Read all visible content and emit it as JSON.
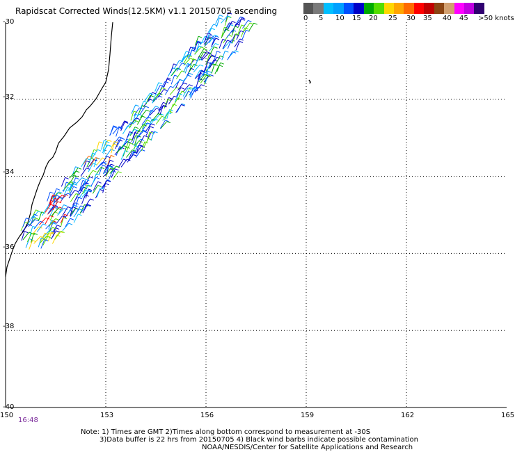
{
  "title": "Rapidscat Corrected Winds(12.5KM) v1.1 20150705 ascending",
  "color_scale": {
    "colors": [
      "#555555",
      "#7a7a7a",
      "#00bfff",
      "#00a0ff",
      "#0050ff",
      "#0000c8",
      "#00aa00",
      "#55dd00",
      "#ffd700",
      "#ffa500",
      "#ff6a00",
      "#ff0000",
      "#c00000",
      "#8b4513",
      "#d2a070",
      "#ff00ff",
      "#c000e0",
      "#300070"
    ],
    "labels": [
      "0",
      "5",
      "10",
      "15",
      "20",
      "25",
      "30",
      "35",
      "40",
      "45",
      ">50 knots"
    ]
  },
  "axes": {
    "x_labels": [
      "150",
      "153",
      "156",
      "159",
      "162",
      "165"
    ],
    "y_labels": [
      "-30",
      "-32",
      "-34",
      "-36",
      "-38",
      "-40"
    ]
  },
  "time_label": "16:48",
  "notes": {
    "line1": "Note: 1) Times are GMT 2)Times along bottom correspond to measurement at -30S",
    "line2": "3)Data buffer is 22 hrs from 20150705 4) Black wind barbs indicate possible contamination",
    "line3": "NOAA/NESDIS/Center for Satellite Applications and Research"
  }
}
